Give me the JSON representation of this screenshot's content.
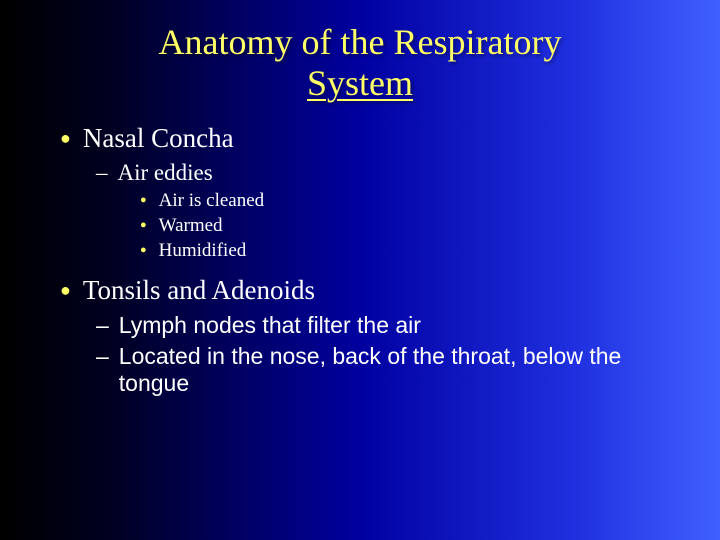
{
  "slide": {
    "title_line1": "Anatomy of the Respiratory",
    "title_line2": "System",
    "title_color": "#ffff66",
    "bullet_color": "#ffff66",
    "text_color": "#ffffff",
    "background_gradient": [
      "#000000",
      "#000020",
      "#0000a0",
      "#2030e0",
      "#4060ff"
    ],
    "items": [
      {
        "label": "Nasal Concha",
        "children": [
          {
            "label": "Air eddies",
            "serif": true,
            "children": [
              {
                "label": "Air is cleaned"
              },
              {
                "label": "Warmed"
              },
              {
                "label": "Humidified"
              }
            ]
          }
        ]
      },
      {
        "label": "Tonsils and Adenoids",
        "children": [
          {
            "label": "Lymph nodes that filter the air",
            "serif": false
          },
          {
            "label": "Located in the nose, back of the throat, below the tongue",
            "serif": false
          }
        ]
      }
    ]
  }
}
